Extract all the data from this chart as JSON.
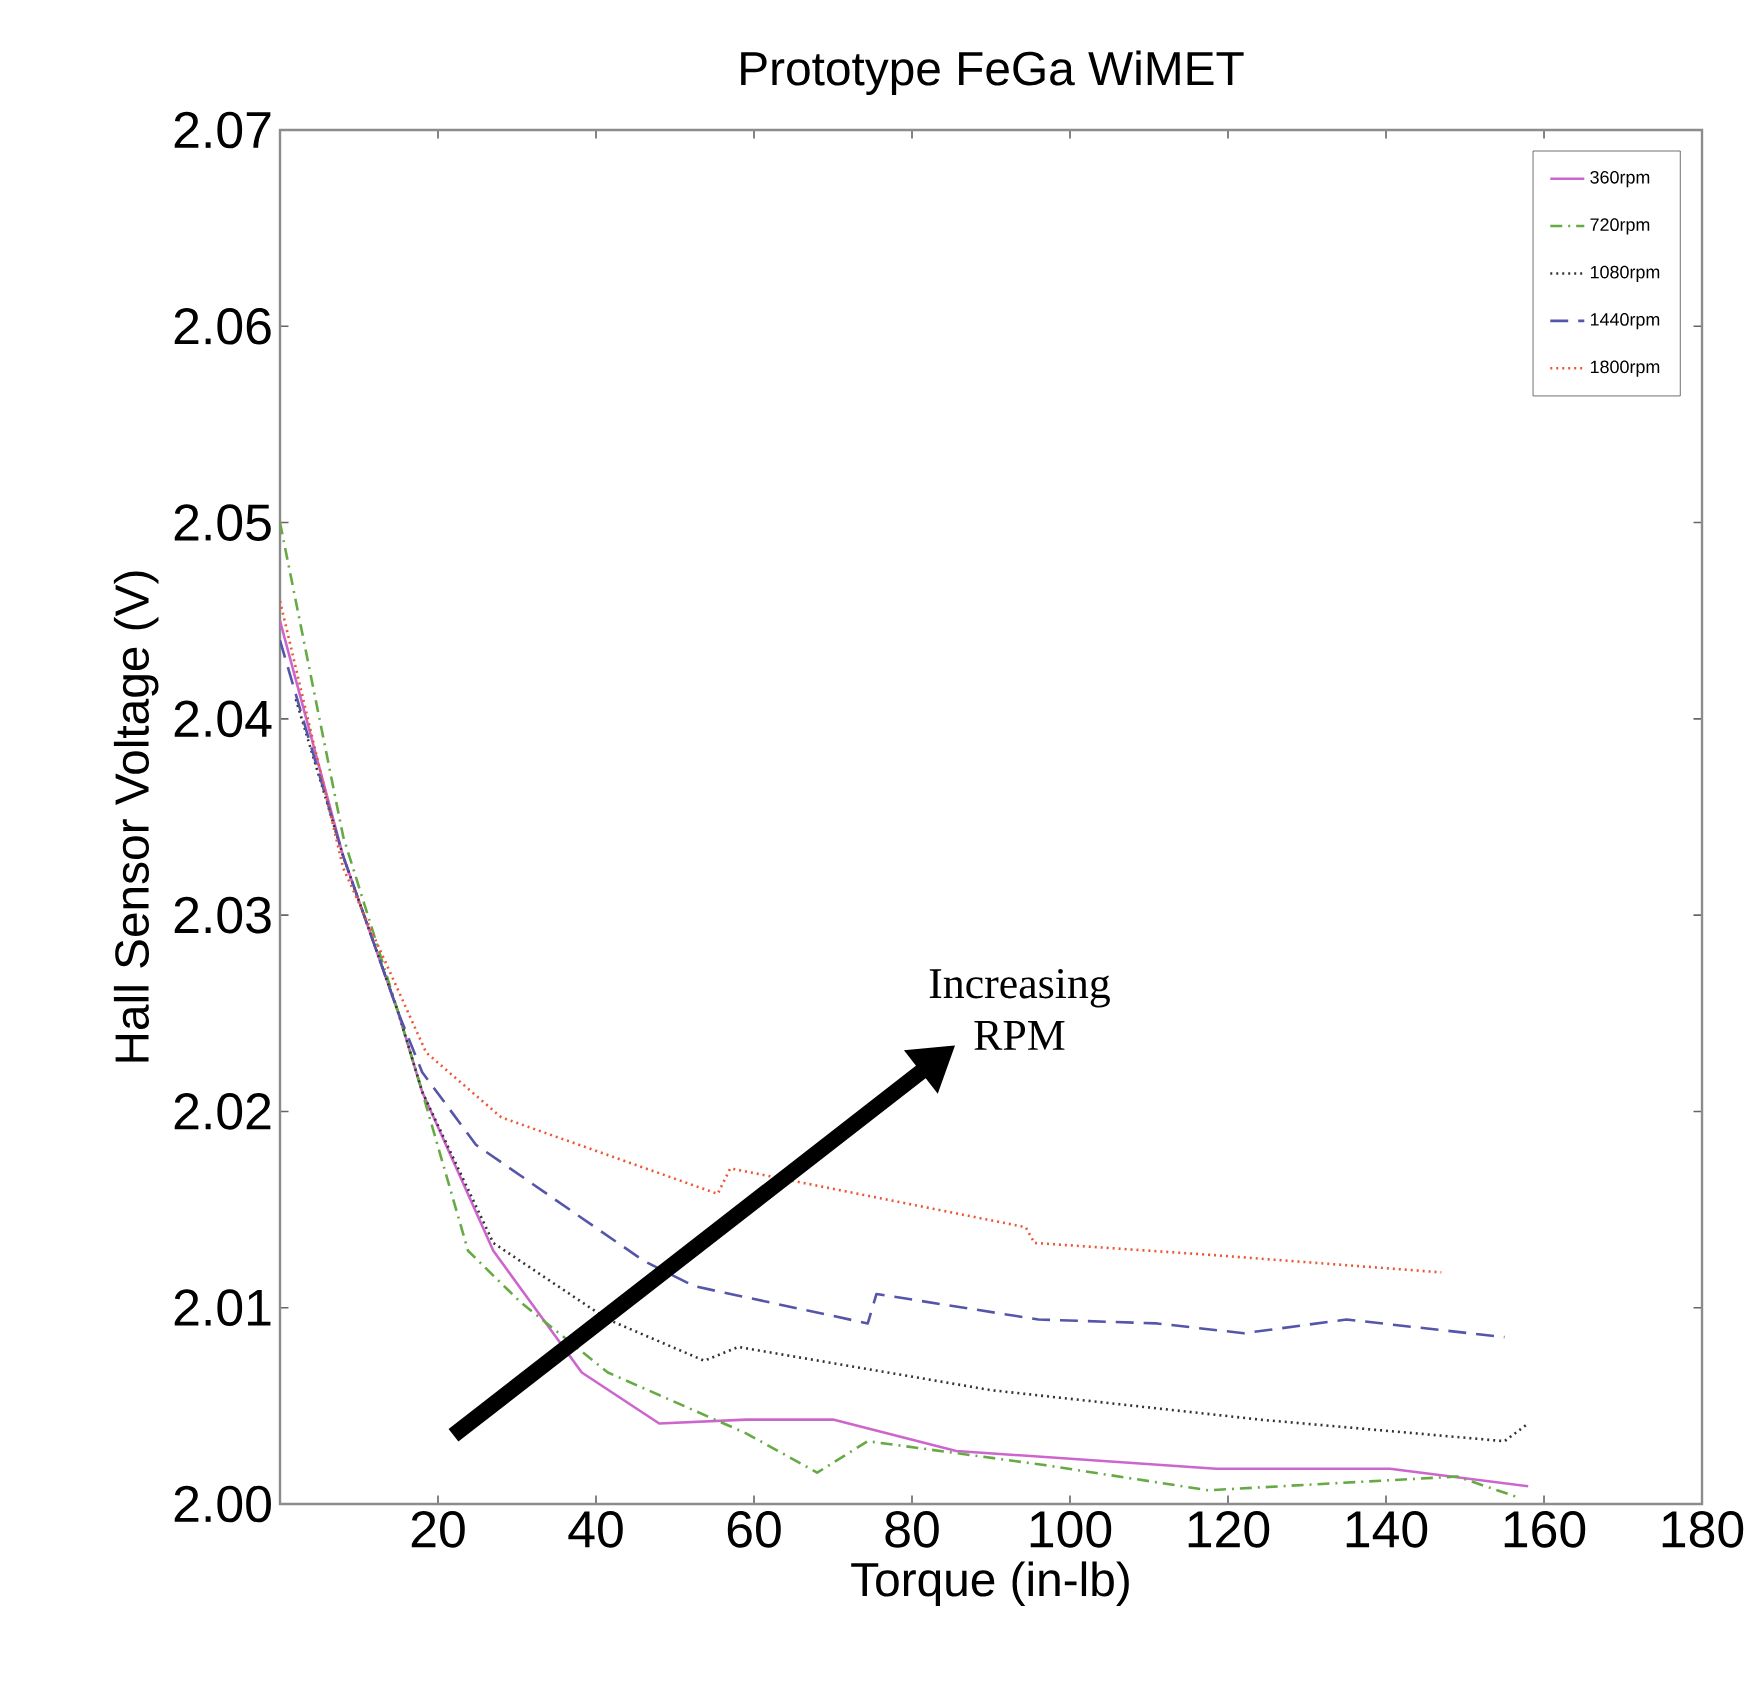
{
  "chart_data": {
    "type": "line",
    "title": "Prototype FeGa WiMET",
    "xlabel": "Torque (in-lb)",
    "ylabel": "Hall Sensor Voltage (V)",
    "xlim": [
      0,
      180
    ],
    "ylim": [
      2.0,
      2.07
    ],
    "xticks": [
      20,
      40,
      60,
      80,
      100,
      120,
      140,
      160,
      180
    ],
    "yticks": [
      {
        "value": 2.0,
        "label": "2.00"
      },
      {
        "value": 2.01,
        "label": "2.01"
      },
      {
        "value": 2.02,
        "label": "2.02"
      },
      {
        "value": 2.03,
        "label": "2.03"
      },
      {
        "value": 2.04,
        "label": "2.04"
      },
      {
        "value": 2.05,
        "label": "2.05"
      },
      {
        "value": 2.06,
        "label": "2.06"
      },
      {
        "value": 2.07,
        "label": "2.07"
      }
    ],
    "grid": false,
    "legend": "top right",
    "marker": "none",
    "annotations": [
      "Increasing RPM"
    ],
    "series": [
      {
        "name": "360rpm",
        "color": "#cc66cc",
        "line_style": "solid",
        "x": [
          0,
          8,
          15,
          18,
          27,
          38.2,
          48,
          59,
          70,
          85.6,
          118.5,
          140.5,
          158
        ],
        "values": [
          2.045,
          2.033,
          2.025,
          2.021,
          2.0129,
          2.0067,
          2.0041,
          2.0043,
          2.0043,
          2.0027,
          2.0018,
          2.0018,
          2.0009
        ]
      },
      {
        "name": "720rpm",
        "color": "#66aa44",
        "line_style": "dashdot",
        "x": [
          0,
          8,
          15,
          18,
          23.8,
          30.4,
          41.5,
          59,
          68,
          74.4,
          96.5,
          117.5,
          149,
          157
        ],
        "values": [
          2.05,
          2.034,
          2.025,
          2.021,
          2.0129,
          2.0103,
          2.0067,
          2.0036,
          2.0016,
          2.0032,
          2.002,
          2.0007,
          2.0014,
          2.0003
        ]
      },
      {
        "name": "1080rpm",
        "color": "#333333",
        "line_style": "dotted",
        "x": [
          2,
          8,
          15,
          18,
          27,
          41.5,
          53.7,
          58,
          90,
          124,
          129.6,
          155,
          158
        ],
        "values": [
          2.041,
          2.033,
          2.025,
          2.021,
          2.0133,
          2.0094,
          2.0073,
          2.008,
          2.0058,
          2.0043,
          2.0041,
          2.0032,
          2.0041
        ]
      },
      {
        "name": "1440rpm",
        "color": "#5555aa",
        "line_style": "dashed",
        "x": [
          0,
          8,
          15,
          18,
          24.8,
          46,
          52.4,
          74.4,
          75.5,
          96,
          111,
          122,
          135,
          155
        ],
        "values": [
          2.044,
          2.033,
          2.025,
          2.022,
          2.0183,
          2.0124,
          2.0111,
          2.0092,
          2.0107,
          2.0094,
          2.0092,
          2.0087,
          2.0094,
          2.0085
        ]
      },
      {
        "name": "1800rpm",
        "color": "#ee5533",
        "line_style": "dotted",
        "x": [
          0,
          8,
          18.5,
          28,
          55.4,
          57,
          94.4,
          95.5,
          117.5,
          147
        ],
        "values": [
          2.046,
          2.0324,
          2.023,
          2.0197,
          2.0158,
          2.0171,
          2.0141,
          2.0133,
          2.0127,
          2.0118
        ]
      }
    ]
  }
}
